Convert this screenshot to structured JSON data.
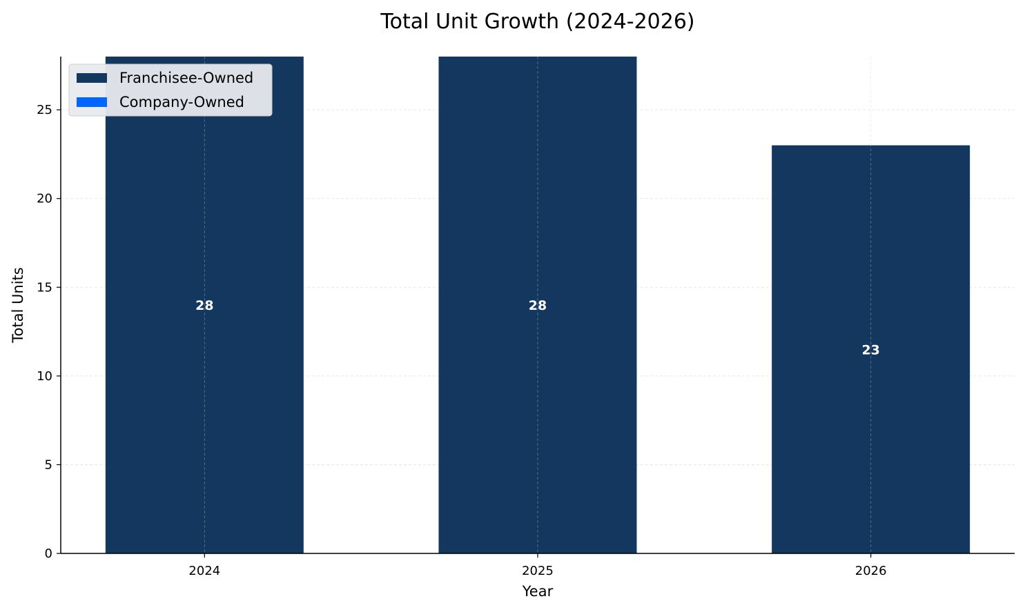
{
  "chart_data": {
    "type": "bar",
    "title": "Total Unit Growth (2024-2026)",
    "xlabel": "Year",
    "ylabel": "Total Units",
    "categories": [
      "2024",
      "2025",
      "2026"
    ],
    "series": [
      {
        "name": "Franchisee-Owned",
        "values": [
          28,
          28,
          23
        ],
        "color": "#14375f"
      },
      {
        "name": "Company-Owned",
        "values": [
          0,
          0,
          0
        ],
        "color": "#0066ff"
      }
    ],
    "totals": [
      "28",
      "28",
      "23"
    ],
    "ylim": [
      0,
      28
    ],
    "yticks": [
      "0",
      "5",
      "10",
      "15",
      "20",
      "25"
    ],
    "grid": true,
    "stacked": true,
    "legend_position": "top-left"
  }
}
